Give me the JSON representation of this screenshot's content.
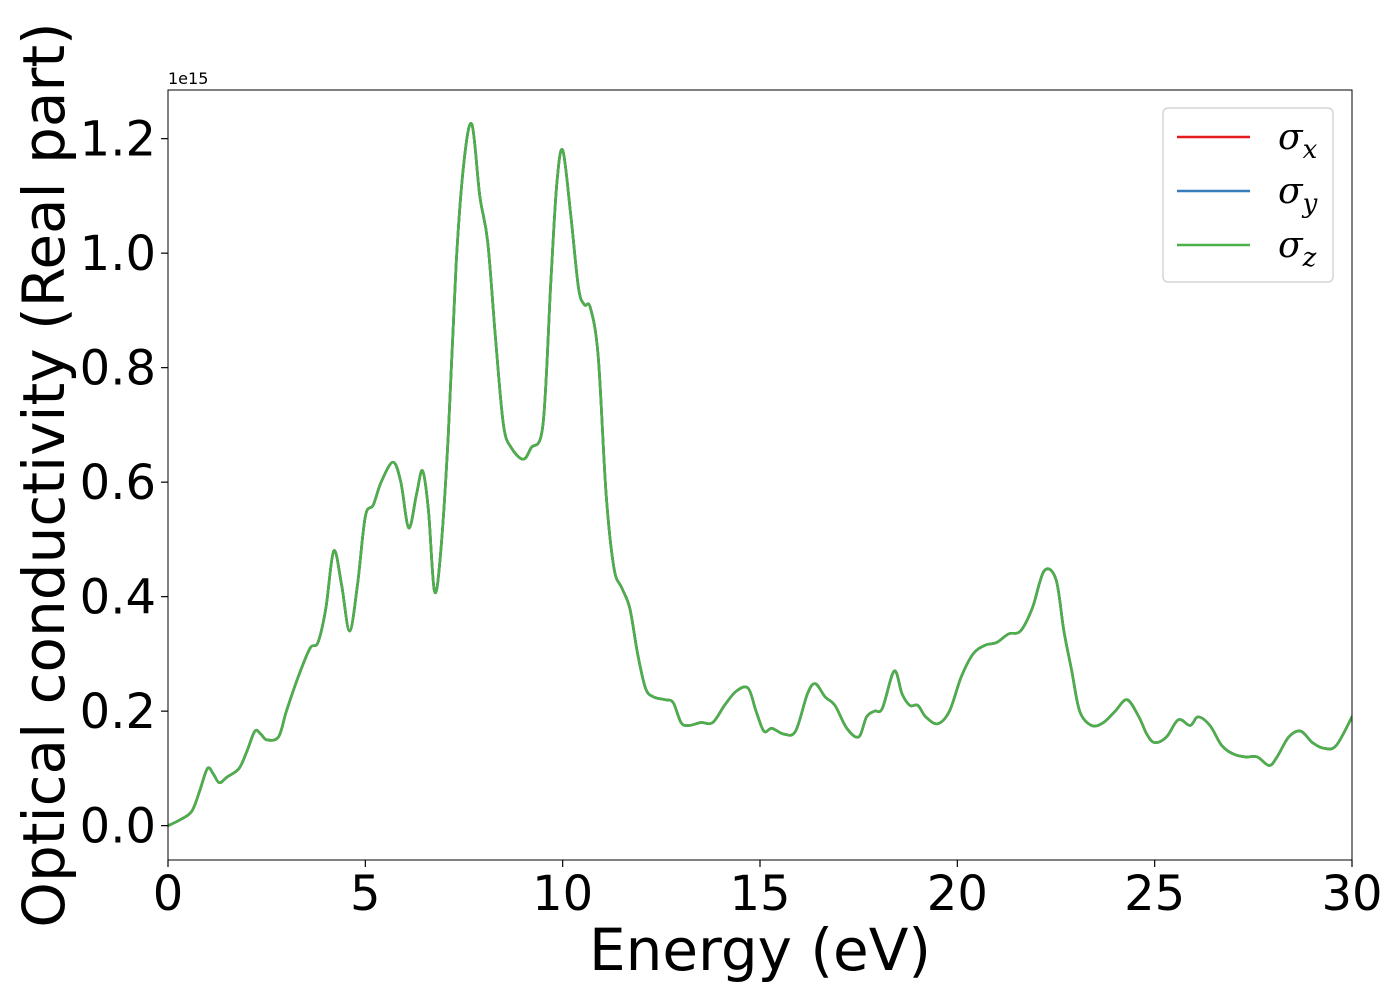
{
  "chart_data": {
    "type": "line",
    "title": "",
    "xlabel": "Energy (eV)",
    "ylabel": "Optical conductivity (Real part)",
    "y_offset_text": "1e15",
    "y_scale": 1000000000000000.0,
    "xlim": [
      0,
      30
    ],
    "ylim": [
      -0.06,
      1.285
    ],
    "xticks": [
      0,
      5,
      10,
      15,
      20,
      25,
      30
    ],
    "xtick_labels": [
      "0",
      "5",
      "10",
      "15",
      "20",
      "25",
      "30"
    ],
    "yticks": [
      0.0,
      0.2,
      0.4,
      0.6,
      0.8,
      1.0,
      1.2
    ],
    "ytick_labels": [
      "0.0",
      "0.2",
      "0.4",
      "0.6",
      "0.8",
      "1.0",
      "1.2"
    ],
    "grid": false,
    "legend_position": "top-right",
    "x": [
      0.0,
      0.3,
      0.6,
      0.8,
      1.0,
      1.15,
      1.3,
      1.5,
      1.8,
      2.0,
      2.2,
      2.35,
      2.5,
      2.8,
      3.0,
      3.3,
      3.6,
      3.8,
      4.0,
      4.2,
      4.4,
      4.6,
      4.8,
      5.0,
      5.2,
      5.4,
      5.7,
      5.9,
      6.1,
      6.3,
      6.45,
      6.6,
      6.75,
      6.9,
      7.1,
      7.3,
      7.5,
      7.7,
      7.9,
      8.1,
      8.3,
      8.5,
      8.7,
      9.0,
      9.2,
      9.5,
      9.7,
      9.85,
      10.0,
      10.2,
      10.4,
      10.55,
      10.7,
      10.9,
      11.1,
      11.3,
      11.5,
      11.7,
      11.9,
      12.1,
      12.3,
      12.6,
      12.8,
      13.0,
      13.2,
      13.5,
      13.8,
      14.1,
      14.4,
      14.7,
      14.9,
      15.1,
      15.3,
      15.6,
      15.9,
      16.2,
      16.4,
      16.65,
      16.9,
      17.2,
      17.5,
      17.7,
      17.9,
      18.1,
      18.4,
      18.6,
      18.8,
      19.0,
      19.2,
      19.5,
      19.8,
      20.1,
      20.4,
      20.7,
      21.0,
      21.3,
      21.6,
      21.9,
      22.2,
      22.5,
      22.7,
      22.9,
      23.1,
      23.4,
      23.7,
      24.0,
      24.3,
      24.6,
      24.8,
      25.0,
      25.3,
      25.6,
      25.9,
      26.1,
      26.4,
      26.7,
      27.0,
      27.3,
      27.6,
      27.9,
      28.1,
      28.4,
      28.7,
      29.0,
      29.3,
      29.6,
      30.0
    ],
    "series": [
      {
        "name": "σx",
        "color": "#e41a1c",
        "values": [
          0.0,
          0.01,
          0.025,
          0.06,
          0.1,
          0.09,
          0.075,
          0.085,
          0.1,
          0.13,
          0.165,
          0.16,
          0.15,
          0.155,
          0.2,
          0.26,
          0.31,
          0.32,
          0.38,
          0.48,
          0.42,
          0.34,
          0.42,
          0.54,
          0.56,
          0.6,
          0.635,
          0.6,
          0.52,
          0.58,
          0.62,
          0.55,
          0.41,
          0.47,
          0.68,
          0.98,
          1.16,
          1.225,
          1.1,
          1.02,
          0.85,
          0.7,
          0.66,
          0.64,
          0.66,
          0.7,
          0.95,
          1.12,
          1.18,
          1.07,
          0.94,
          0.91,
          0.905,
          0.82,
          0.58,
          0.45,
          0.415,
          0.38,
          0.3,
          0.24,
          0.225,
          0.22,
          0.215,
          0.18,
          0.175,
          0.18,
          0.18,
          0.21,
          0.235,
          0.24,
          0.2,
          0.165,
          0.17,
          0.16,
          0.165,
          0.23,
          0.248,
          0.225,
          0.21,
          0.17,
          0.155,
          0.19,
          0.2,
          0.205,
          0.27,
          0.23,
          0.21,
          0.21,
          0.19,
          0.178,
          0.2,
          0.26,
          0.3,
          0.315,
          0.32,
          0.335,
          0.34,
          0.38,
          0.445,
          0.43,
          0.34,
          0.27,
          0.2,
          0.175,
          0.18,
          0.2,
          0.22,
          0.19,
          0.16,
          0.145,
          0.155,
          0.185,
          0.175,
          0.19,
          0.175,
          0.14,
          0.125,
          0.12,
          0.12,
          0.105,
          0.12,
          0.155,
          0.165,
          0.145,
          0.135,
          0.14,
          0.19
        ]
      },
      {
        "name": "σy",
        "color": "#377eb8",
        "values": [
          0.0,
          0.01,
          0.025,
          0.06,
          0.1,
          0.09,
          0.075,
          0.085,
          0.1,
          0.13,
          0.165,
          0.16,
          0.15,
          0.155,
          0.2,
          0.26,
          0.31,
          0.32,
          0.38,
          0.48,
          0.42,
          0.34,
          0.42,
          0.54,
          0.56,
          0.6,
          0.635,
          0.6,
          0.52,
          0.58,
          0.62,
          0.55,
          0.41,
          0.47,
          0.68,
          0.98,
          1.16,
          1.225,
          1.1,
          1.02,
          0.85,
          0.7,
          0.66,
          0.64,
          0.66,
          0.7,
          0.95,
          1.12,
          1.18,
          1.07,
          0.94,
          0.91,
          0.905,
          0.82,
          0.58,
          0.45,
          0.415,
          0.38,
          0.3,
          0.24,
          0.225,
          0.22,
          0.215,
          0.18,
          0.175,
          0.18,
          0.18,
          0.21,
          0.235,
          0.24,
          0.2,
          0.165,
          0.17,
          0.16,
          0.165,
          0.23,
          0.248,
          0.225,
          0.21,
          0.17,
          0.155,
          0.19,
          0.2,
          0.205,
          0.27,
          0.23,
          0.21,
          0.21,
          0.19,
          0.178,
          0.2,
          0.26,
          0.3,
          0.315,
          0.32,
          0.335,
          0.34,
          0.38,
          0.445,
          0.43,
          0.34,
          0.27,
          0.2,
          0.175,
          0.18,
          0.2,
          0.22,
          0.19,
          0.16,
          0.145,
          0.155,
          0.185,
          0.175,
          0.19,
          0.175,
          0.14,
          0.125,
          0.12,
          0.12,
          0.105,
          0.12,
          0.155,
          0.165,
          0.145,
          0.135,
          0.14,
          0.19
        ]
      },
      {
        "name": "σz",
        "color": "#4daf4a",
        "values": [
          0.0,
          0.01,
          0.025,
          0.06,
          0.1,
          0.09,
          0.075,
          0.085,
          0.1,
          0.13,
          0.165,
          0.16,
          0.15,
          0.155,
          0.2,
          0.26,
          0.31,
          0.32,
          0.38,
          0.48,
          0.42,
          0.34,
          0.42,
          0.54,
          0.56,
          0.6,
          0.635,
          0.6,
          0.52,
          0.58,
          0.62,
          0.55,
          0.41,
          0.47,
          0.68,
          0.98,
          1.16,
          1.225,
          1.1,
          1.02,
          0.85,
          0.7,
          0.66,
          0.64,
          0.66,
          0.7,
          0.95,
          1.12,
          1.18,
          1.07,
          0.94,
          0.91,
          0.905,
          0.82,
          0.58,
          0.45,
          0.415,
          0.38,
          0.3,
          0.24,
          0.225,
          0.22,
          0.215,
          0.18,
          0.175,
          0.18,
          0.18,
          0.21,
          0.235,
          0.24,
          0.2,
          0.165,
          0.17,
          0.16,
          0.165,
          0.23,
          0.248,
          0.225,
          0.21,
          0.17,
          0.155,
          0.19,
          0.2,
          0.205,
          0.27,
          0.23,
          0.21,
          0.21,
          0.19,
          0.178,
          0.2,
          0.26,
          0.3,
          0.315,
          0.32,
          0.335,
          0.34,
          0.38,
          0.445,
          0.43,
          0.34,
          0.27,
          0.2,
          0.175,
          0.18,
          0.2,
          0.22,
          0.19,
          0.16,
          0.145,
          0.155,
          0.185,
          0.175,
          0.19,
          0.175,
          0.14,
          0.125,
          0.12,
          0.12,
          0.105,
          0.12,
          0.155,
          0.165,
          0.145,
          0.135,
          0.14,
          0.19
        ]
      }
    ],
    "legend": [
      {
        "symbol": "σ",
        "subscript": "x",
        "color": "#e41a1c"
      },
      {
        "symbol": "σ",
        "subscript": "y",
        "color": "#377eb8"
      },
      {
        "symbol": "σ",
        "subscript": "z",
        "color": "#4daf4a"
      }
    ]
  }
}
